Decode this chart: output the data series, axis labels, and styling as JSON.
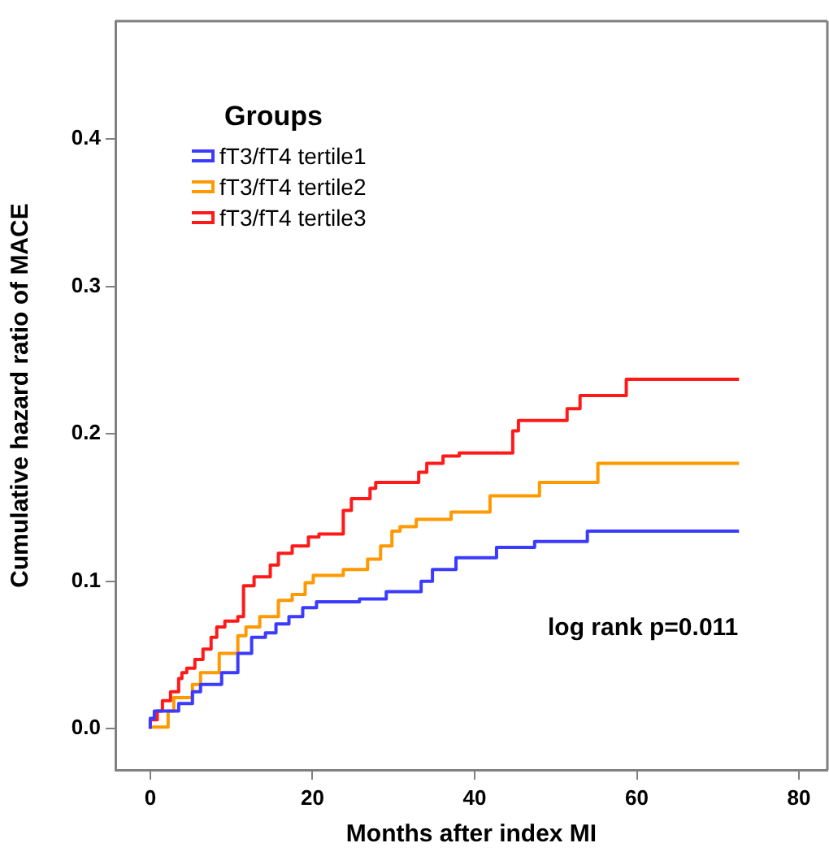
{
  "chart_data": {
    "type": "step",
    "xlabel": "Months after index MI",
    "ylabel": "Cumulative hazard ratio of MACE",
    "legend_title": "Groups",
    "legend": "top left",
    "grid": false,
    "xlim": [
      -4.3,
      83.5
    ],
    "xticks": [
      0,
      20,
      40,
      60,
      80
    ],
    "ylim": [
      -0.028,
      0.48
    ],
    "yticks": [
      {
        "value": 0,
        "label": "0.0"
      },
      0.1,
      0.2,
      0.3,
      0.4
    ],
    "annotations": [
      "log rank p=0.011"
    ],
    "series": [
      {
        "name": "fT3/fT4 tertile1",
        "color": "#3b3bff",
        "x": [
          0,
          0.5,
          3.5,
          5.2,
          6.2,
          8.8,
          10.8,
          12.5,
          14.2,
          15.5,
          17.1,
          18.8,
          20.5,
          25.8,
          29.1,
          33.4,
          34.8,
          37.7,
          42.7,
          47.4,
          53.9,
          57.3,
          72.6
        ],
        "values": [
          0,
          0.007,
          0.012,
          0.017,
          0.025,
          0.03,
          0.038,
          0.051,
          0.062,
          0.065,
          0.071,
          0.076,
          0.082,
          0.086,
          0.088,
          0.093,
          0.1,
          0.108,
          0.116,
          0.123,
          0.127,
          0.134,
          0.134
        ]
      },
      {
        "name": "fT3/fT4 tertile2",
        "color": "#ff9900",
        "x": [
          0,
          2.2,
          2.9,
          5.2,
          6.2,
          8.5,
          10.8,
          11.8,
          13.5,
          15.8,
          17.5,
          19.1,
          20.1,
          23.8,
          26.8,
          28.4,
          29.8,
          30.8,
          32.8,
          37.1,
          41.9,
          48,
          55.2,
          65,
          72.6
        ],
        "values": [
          0,
          0.001,
          0.012,
          0.021,
          0.03,
          0.038,
          0.051,
          0.063,
          0.069,
          0.076,
          0.087,
          0.091,
          0.099,
          0.104,
          0.108,
          0.115,
          0.124,
          0.134,
          0.137,
          0.142,
          0.147,
          0.158,
          0.167,
          0.18,
          0.18
        ]
      },
      {
        "name": "fT3/fT4 tertile3",
        "color": "#ff1a1a",
        "x": [
          0,
          0.86,
          1.5,
          2.5,
          3.5,
          3.9,
          4.5,
          5.5,
          6.5,
          7.5,
          8.2,
          9.2,
          10.8,
          11.5,
          12.8,
          14.8,
          15.8,
          17.5,
          19.5,
          20.8,
          23.8,
          24.8,
          27.1,
          27.8,
          33.1,
          34.1,
          36.1,
          38.1,
          44.7,
          45.4,
          51.4,
          53,
          58.7,
          61.7,
          72.6
        ],
        "values": [
          0,
          0.006,
          0.012,
          0.019,
          0.025,
          0.034,
          0.038,
          0.041,
          0.047,
          0.054,
          0.062,
          0.069,
          0.073,
          0.076,
          0.097,
          0.103,
          0.111,
          0.119,
          0.124,
          0.13,
          0.132,
          0.148,
          0.156,
          0.163,
          0.167,
          0.174,
          0.18,
          0.185,
          0.187,
          0.202,
          0.209,
          0.217,
          0.226,
          0.237,
          0.237
        ]
      }
    ]
  }
}
